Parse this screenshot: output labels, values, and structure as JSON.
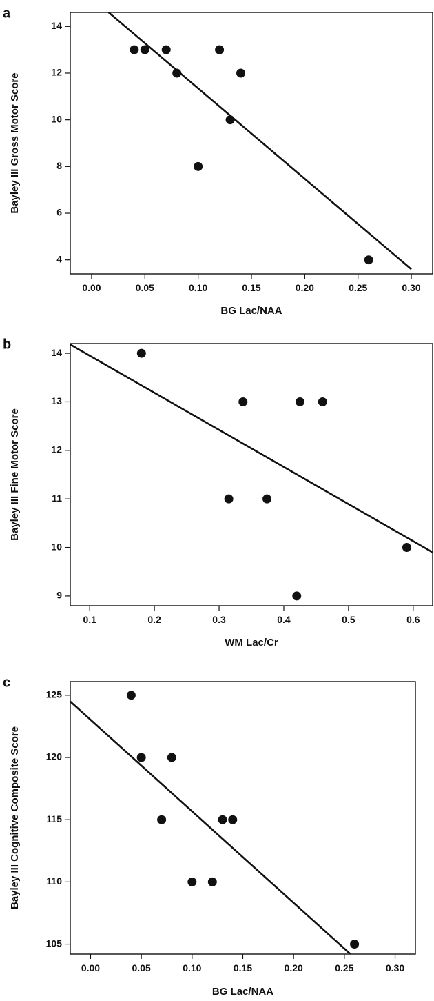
{
  "chart_data": [
    {
      "type": "scatter",
      "panel_label": "a",
      "xlabel": "BG Lac/NAA",
      "ylabel": "Bayley III Gross Motor Score",
      "xlim": [
        -0.02,
        0.32
      ],
      "ylim": [
        3.4,
        14.6
      ],
      "xticks": [
        "0.00",
        "0.05",
        "0.10",
        "0.15",
        "0.20",
        "0.25",
        "0.30"
      ],
      "yticks": [
        "4",
        "6",
        "8",
        "10",
        "12",
        "14"
      ],
      "x": [
        0.04,
        0.05,
        0.07,
        0.08,
        0.1,
        0.12,
        0.13,
        0.14,
        0.26
      ],
      "y": [
        13,
        13,
        13,
        12,
        8,
        13,
        10,
        12,
        4
      ],
      "fit_line": {
        "x": [
          0.016,
          0.3
        ],
        "y": [
          14.6,
          3.6
        ]
      }
    },
    {
      "type": "scatter",
      "panel_label": "b",
      "xlabel": "WM Lac/Cr",
      "ylabel": "Bayley III Fine Motor Score",
      "xlim": [
        0.07,
        0.63
      ],
      "ylim": [
        8.8,
        14.2
      ],
      "xticks": [
        "0.1",
        "0.2",
        "0.3",
        "0.4",
        "0.5",
        "0.6"
      ],
      "yticks": [
        "9",
        "10",
        "11",
        "12",
        "13",
        "14"
      ],
      "x": [
        0.18,
        0.315,
        0.337,
        0.374,
        0.42,
        0.425,
        0.46,
        0.59
      ],
      "y": [
        14,
        11,
        13,
        11,
        9,
        13,
        13,
        10
      ],
      "fit_line": {
        "x": [
          0.07,
          0.63
        ],
        "y": [
          14.18,
          9.9
        ]
      }
    },
    {
      "type": "scatter",
      "panel_label": "c",
      "xlabel": "BG Lac/NAA",
      "ylabel": "Bayley III Cognitive Composite Score",
      "xlim": [
        -0.02,
        0.32
      ],
      "ylim": [
        104.2,
        126.1
      ],
      "xticks": [
        "0.00",
        "0.05",
        "0.10",
        "0.15",
        "0.20",
        "0.25",
        "0.30"
      ],
      "yticks": [
        "105",
        "110",
        "115",
        "120",
        "125"
      ],
      "x": [
        0.04,
        0.05,
        0.07,
        0.08,
        0.1,
        0.12,
        0.13,
        0.14,
        0.26
      ],
      "y": [
        125,
        120,
        115,
        120,
        110,
        110,
        115,
        115,
        105
      ],
      "fit_line": {
        "x": [
          -0.02,
          0.256
        ],
        "y": [
          124.5,
          104.2
        ]
      }
    }
  ]
}
